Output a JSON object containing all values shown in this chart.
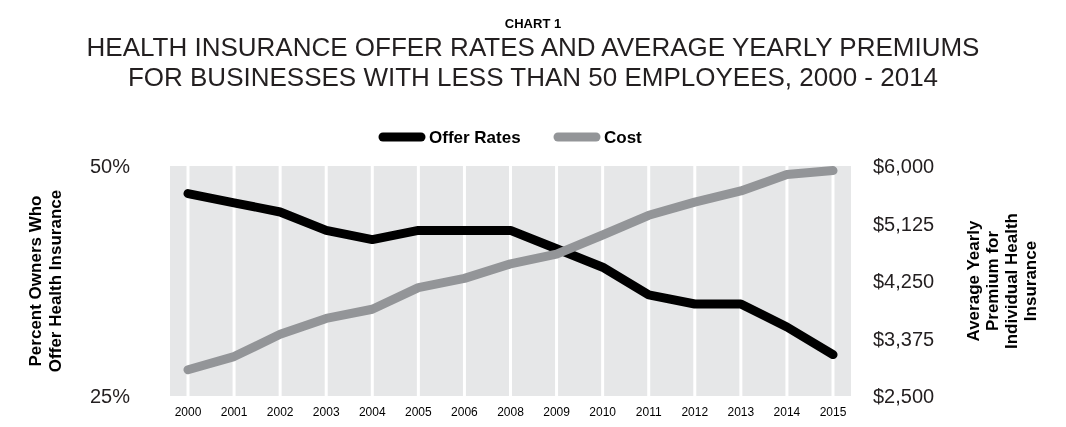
{
  "chart_data": {
    "type": "line",
    "title": "CHART 1",
    "subtitle": "HEALTH INSURANCE OFFER RATES AND AVERAGE YEARLY PREMIUMS FOR BUSINESSES WITH LESS THAN 50 EMPLOYEES, 2000 - 2014",
    "ylabel": "Percent Owners Who Offer Health Insurance",
    "y2label": "Average Yearly Premium for Individual Health Insurance",
    "categories": [
      "2000",
      "2001",
      "2002",
      "2003",
      "2004",
      "2005",
      "2006",
      "2008",
      "2009",
      "2010",
      "2011",
      "2012",
      "2013",
      "2014",
      "2015"
    ],
    "series": [
      {
        "name": "Offer Rates",
        "color": "#000000",
        "values": [
          47,
          46,
          45,
          43,
          42,
          43,
          43,
          43,
          41,
          39,
          36,
          35,
          35,
          32.5,
          29.5
        ]
      },
      {
        "name": "Cost",
        "color": "#939598",
        "axis": "y2",
        "values": [
          2900,
          3100,
          3440,
          3680,
          3820,
          4150,
          4290,
          4510,
          4660,
          4950,
          5250,
          5450,
          5620,
          5870,
          5930
        ]
      }
    ],
    "ylim": [
      25,
      50
    ],
    "yticks": [
      {
        "value": 25,
        "label": "25%"
      },
      {
        "value": 50,
        "label": "50%"
      }
    ],
    "y2lim": [
      2500,
      6000
    ],
    "y2ticks": [
      {
        "value": 2500,
        "label": "$2,500"
      },
      {
        "value": 3375,
        "label": "$3,375"
      },
      {
        "value": 4250,
        "label": "$4,250"
      },
      {
        "value": 5125,
        "label": "$5,125"
      },
      {
        "value": 6000,
        "label": "$6,000"
      }
    ],
    "grid": "x",
    "legend": "top",
    "line_style": "solid",
    "marker": "none"
  }
}
